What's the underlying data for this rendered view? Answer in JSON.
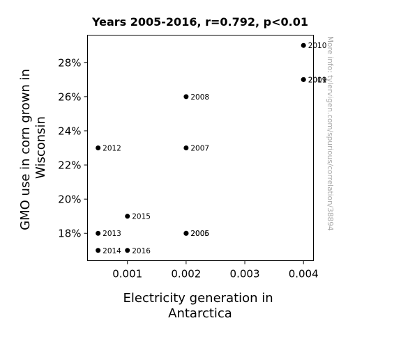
{
  "chart_data": {
    "type": "scatter",
    "title": "Years 2005-2016, r=0.792, p<0.01",
    "xlabel": [
      "Electricity generation in",
      "Antarctica"
    ],
    "ylabel": [
      "GMO use in corn grown in",
      "Wisconsin"
    ],
    "xlim": [
      0.00032,
      0.00417
    ],
    "ylim": [
      16.4,
      29.6
    ],
    "x_ticks": [
      0.001,
      0.002,
      0.003,
      0.004
    ],
    "x_tick_labels": [
      "0.001",
      "0.002",
      "0.003",
      "0.004"
    ],
    "y_ticks": [
      18,
      20,
      22,
      24,
      26,
      28
    ],
    "y_tick_labels": [
      "18%",
      "20%",
      "22%",
      "24%",
      "26%",
      "28%"
    ],
    "grid": false,
    "legend": "none",
    "point_color": "#000000",
    "points": [
      {
        "label": "2005",
        "x": 0.002,
        "y": 18
      },
      {
        "label": "2006",
        "x": 0.002,
        "y": 18
      },
      {
        "label": "2007",
        "x": 0.002,
        "y": 23
      },
      {
        "label": "2008",
        "x": 0.002,
        "y": 26
      },
      {
        "label": "2009",
        "x": 0.004,
        "y": 27
      },
      {
        "label": "2010",
        "x": 0.004,
        "y": 29
      },
      {
        "label": "2011",
        "x": 0.004,
        "y": 27
      },
      {
        "label": "2012",
        "x": 0.0005,
        "y": 23
      },
      {
        "label": "2013",
        "x": 0.0005,
        "y": 18
      },
      {
        "label": "2014",
        "x": 0.0005,
        "y": 17
      },
      {
        "label": "2015",
        "x": 0.001,
        "y": 19
      },
      {
        "label": "2016",
        "x": 0.001,
        "y": 17
      }
    ],
    "watermark": "More info: tylervigen.com/spurious/correlation/38894"
  }
}
